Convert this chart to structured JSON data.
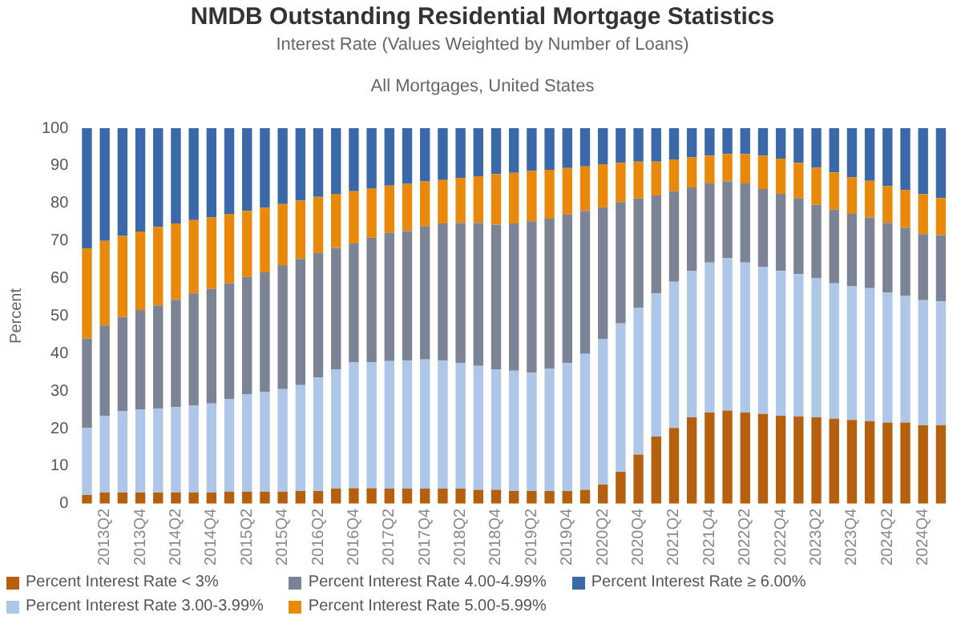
{
  "chart_data": {
    "type": "bar",
    "stacked": true,
    "title": "NMDB Outstanding Residential Mortgage Statistics",
    "subtitle": "Interest Rate (Values Weighted by Number of Loans)",
    "annotations": [
      "All Mortgages,  United States"
    ],
    "ylabel": "Percent",
    "ylim": [
      0,
      100
    ],
    "yticks": [
      0,
      10,
      20,
      30,
      40,
      50,
      60,
      70,
      80,
      90,
      100
    ],
    "grid": false,
    "legend": "bottom",
    "categories": [
      null,
      "2013Q2",
      null,
      "2013Q4",
      null,
      "2014Q2",
      null,
      "2014Q4",
      null,
      "2015Q2",
      null,
      "2015Q4",
      null,
      "2016Q2",
      null,
      "2016Q4",
      null,
      "2017Q2",
      null,
      "2017Q4",
      null,
      "2018Q2",
      null,
      "2018Q4",
      null,
      "2019Q2",
      null,
      "2019Q4",
      null,
      "2020Q2",
      null,
      "2020Q4",
      null,
      "2021Q2",
      null,
      "2021Q4",
      null,
      "2022Q2",
      null,
      "2022Q4",
      null,
      "2023Q2",
      null,
      "2023Q4",
      null,
      "2024Q2",
      null,
      "2024Q4",
      null
    ],
    "series": [
      {
        "name": "Percent Interest Rate < 3%",
        "color": "#b5600f",
        "values": [
          2.3,
          3,
          3,
          3,
          3,
          3,
          3,
          3,
          3.2,
          3.2,
          3.2,
          3.2,
          3.4,
          3.4,
          4,
          4.1,
          4.1,
          4,
          4,
          4,
          4,
          4,
          3.7,
          3.7,
          3.4,
          3.4,
          3.4,
          3.4,
          3.7,
          5.1,
          8.5,
          13.1,
          17.9,
          20.2,
          23,
          24.3,
          24.8,
          24.3,
          23.9,
          23.4,
          23.2,
          23,
          22.6,
          22.3,
          22,
          21.6,
          21.6,
          20.9,
          20.9
        ]
      },
      {
        "name": "Percent Interest Rate 3.00-3.99%",
        "color": "#aec7e8",
        "values": [
          17.9,
          20.4,
          21.6,
          22,
          22.3,
          22.7,
          23.1,
          23.7,
          24.6,
          26,
          26.6,
          27.3,
          28.2,
          30.2,
          31.8,
          33.6,
          33.6,
          34,
          34.1,
          34.4,
          34.1,
          33.4,
          33,
          32.1,
          32,
          31.5,
          32.6,
          34,
          36.2,
          38.8,
          39.5,
          39,
          38.1,
          38.9,
          38.9,
          39.9,
          40.6,
          39.9,
          39.2,
          38.6,
          37.9,
          37.1,
          36.1,
          35.7,
          35.4,
          34.7,
          33.7,
          33.3,
          33
        ]
      },
      {
        "name": "Percent Interest Rate 4.00-4.99%",
        "color": "#7b8394",
        "values": [
          23.8,
          24.1,
          25.1,
          26.6,
          27.5,
          28.6,
          29.9,
          30.5,
          30.9,
          31.2,
          31.8,
          33,
          33.6,
          33.1,
          32.3,
          31.6,
          33.1,
          34.1,
          34.5,
          35.5,
          36.5,
          37.4,
          38.1,
          38.5,
          39.2,
          40.3,
          39.9,
          39.6,
          38.1,
          35,
          32.3,
          29.2,
          26.1,
          24.1,
          22.3,
          21.1,
          20.4,
          21.1,
          20.7,
          20.5,
          20.3,
          19.5,
          19.6,
          19.2,
          18.8,
          18.5,
          18.2,
          17.6,
          17.6
        ]
      },
      {
        "name": "Percent Interest Rate 5.00-5.99%",
        "color": "#e8890c",
        "values": [
          24,
          22.5,
          21.6,
          20.9,
          20.9,
          20.3,
          19.5,
          19,
          18.5,
          17.6,
          17.2,
          16.3,
          15.5,
          15,
          14.4,
          13.9,
          13.2,
          12.6,
          12.6,
          11.9,
          11.6,
          12,
          12.4,
          13.5,
          13.5,
          13.4,
          13,
          12.4,
          11.8,
          11.5,
          10.5,
          9.8,
          9,
          8.5,
          8,
          7.4,
          7.3,
          7.8,
          8.9,
          9.4,
          9.4,
          9.9,
          9.9,
          9.7,
          9.8,
          9.8,
          10,
          10.6,
          9.9
        ]
      },
      {
        "name": "Percent Interest Rate ≥ 6.00%",
        "color": "#3a68a8",
        "values": [
          32,
          30,
          28.7,
          27.5,
          26.3,
          25.4,
          24.5,
          23.8,
          22.8,
          22,
          21.2,
          20.2,
          19.3,
          18.3,
          17.5,
          16.8,
          16,
          15.6,
          14.8,
          14.2,
          13.8,
          13.2,
          12.8,
          12.2,
          11.9,
          11.4,
          11.1,
          10.6,
          10.2,
          9.6,
          9.2,
          8.9,
          8.9,
          8.3,
          7.8,
          7.3,
          6.9,
          6.9,
          7.3,
          8.1,
          9.2,
          10.5,
          11.8,
          13.1,
          14,
          15.4,
          16.5,
          17.6,
          18.6
        ]
      }
    ]
  }
}
